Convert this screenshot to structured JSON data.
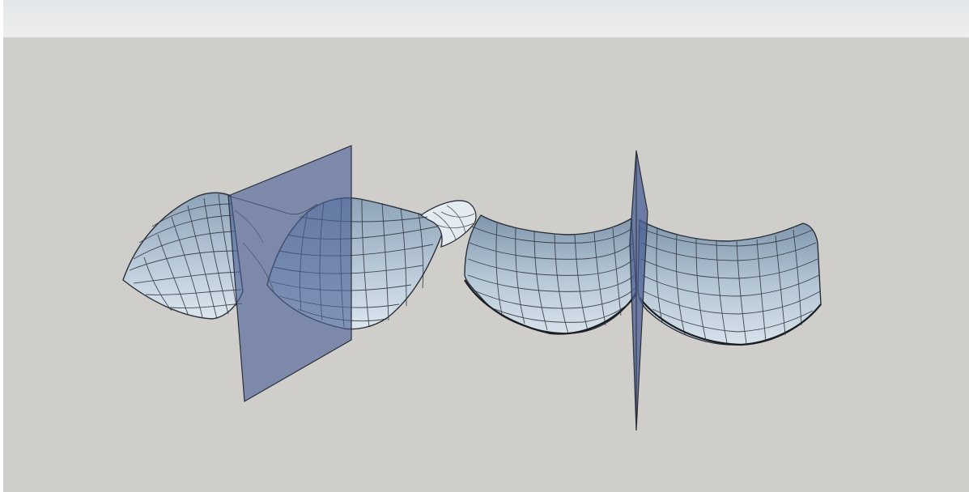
{
  "app": {
    "window_title": ""
  },
  "toolbar": {
    "items": []
  },
  "viewport": {
    "background_color": "#cfcecb",
    "scene": {
      "objects": [
        {
          "name": "saddle-surface",
          "type": "surface",
          "color": "#b9cad8"
        },
        {
          "name": "vertical-section-plane-left",
          "type": "plane",
          "color": "#4b5f96"
        },
        {
          "name": "trough-surface",
          "type": "surface",
          "color": "#b9cad8"
        },
        {
          "name": "vertical-section-plane-right",
          "type": "plane",
          "color": "#4b5f96"
        }
      ]
    }
  },
  "colors": {
    "toolbar": "#e8eaec",
    "viewport": "#cfcecb",
    "surface_light": "#dbe4ec",
    "surface_dark": "#9fb2c4",
    "plane": "#4b5f96",
    "edges": "#2a2f38"
  }
}
